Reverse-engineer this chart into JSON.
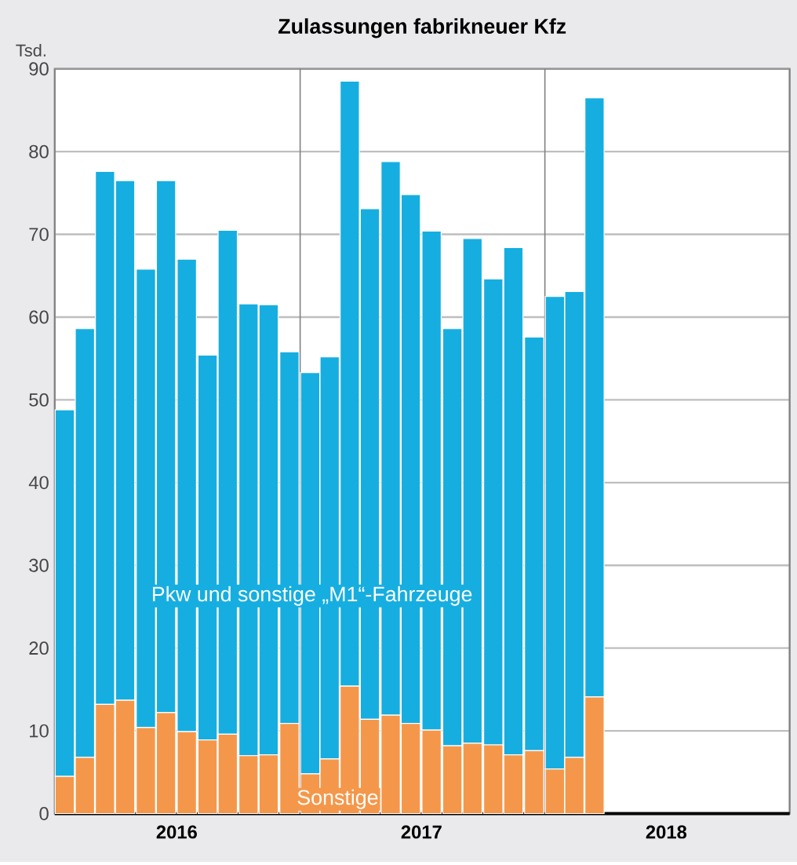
{
  "chart_data": {
    "type": "bar",
    "title": "Zulassungen fabrikneuer Kfz",
    "ylabel": "Tsd.",
    "stacked": true,
    "grid": true,
    "x": [
      "2016-01-16",
      "2016-02-15",
      "2016-03-16",
      "2016-04-15",
      "2016-05-16",
      "2016-06-15",
      "2016-07-16",
      "2016-08-16",
      "2016-09-15",
      "2016-10-16",
      "2016-11-15",
      "2016-12-16",
      "2017-01-16",
      "2017-02-14",
      "2017-03-16",
      "2017-04-15",
      "2017-05-16",
      "2017-06-15",
      "2017-07-16",
      "2017-08-16",
      "2017-09-15",
      "2017-10-16",
      "2017-11-15",
      "2017-12-16",
      "2018-01-16",
      "2018-02-14",
      "2018-03-16"
    ],
    "xlim": [
      "2016-01-01",
      "2019-01-01"
    ],
    "xticks": [
      {
        "value": "2016-01-01",
        "label": null
      },
      {
        "value": "2016-07-01",
        "label": "2016"
      },
      {
        "value": "2017-01-01",
        "label": null
      },
      {
        "value": "2017-07-01",
        "label": "2017"
      },
      {
        "value": "2018-01-01",
        "label": null
      },
      {
        "value": "2018-07-01",
        "label": "2018"
      },
      {
        "value": "2019-01-01",
        "label": null
      }
    ],
    "ylim": [
      0,
      90
    ],
    "yticks": [
      0,
      10,
      20,
      30,
      40,
      50,
      60,
      70,
      80,
      90
    ],
    "series": [
      {
        "name": "Sonstige",
        "color": "#f5974a",
        "values": [
          4.5,
          6.8,
          13.2,
          13.7,
          10.4,
          12.2,
          9.9,
          8.9,
          9.6,
          7.0,
          7.1,
          10.9,
          4.8,
          6.6,
          15.4,
          11.4,
          11.9,
          10.9,
          10.1,
          8.2,
          8.5,
          8.3,
          7.1,
          7.6,
          5.4,
          6.8,
          14.1
        ]
      },
      {
        "name": "Pkw und sonstige „M1“-Fahrzeuge",
        "color": "#16aee0",
        "values": [
          44.3,
          51.8,
          64.4,
          62.8,
          55.4,
          64.3,
          57.1,
          46.5,
          60.9,
          54.6,
          54.4,
          44.9,
          48.5,
          48.6,
          73.1,
          61.7,
          66.9,
          63.9,
          60.3,
          50.4,
          61.0,
          56.3,
          61.3,
          50.0,
          57.1,
          56.3,
          72.4
        ]
      }
    ]
  }
}
